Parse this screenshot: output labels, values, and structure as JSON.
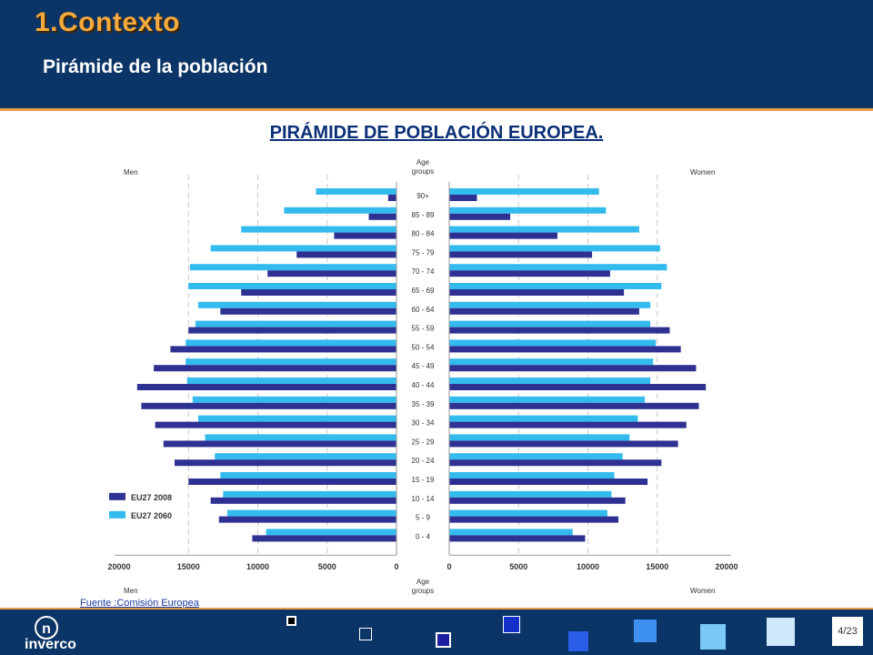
{
  "header": {
    "title": "1.Contexto",
    "subtitle": "Pirámide de la población"
  },
  "chart_data": {
    "type": "bar",
    "title": "PIRÁMIDE DE POBLACIÓN EUROPEA.",
    "center_label": "Age groups",
    "left_label": "Men",
    "right_label": "Women",
    "categories": [
      "90+",
      "85 - 89",
      "80 - 84",
      "75 - 79",
      "70 - 74",
      "65 - 69",
      "60 - 64",
      "55 - 59",
      "50 - 54",
      "45 - 49",
      "40 - 44",
      "35 - 39",
      "30 - 34",
      "25 - 29",
      "20 - 24",
      "15 - 19",
      "10 - 14",
      "5 - 9",
      "0 - 4"
    ],
    "series": [
      {
        "name": "EU27 2008",
        "color": "#2e3192",
        "men": [
          600,
          2000,
          4500,
          7200,
          9300,
          11200,
          12700,
          15000,
          16300,
          17500,
          18700,
          18400,
          17400,
          16800,
          16000,
          15000,
          13400,
          12800,
          10400
        ],
        "women": [
          2000,
          4400,
          7800,
          10300,
          11600,
          12600,
          13700,
          15900,
          16700,
          17800,
          18500,
          18000,
          17100,
          16500,
          15300,
          14300,
          12700,
          12200,
          9800
        ]
      },
      {
        "name": "EU27 2060",
        "color": "#33bbee",
        "men": [
          5800,
          8100,
          11200,
          13400,
          14900,
          15000,
          14300,
          14500,
          15200,
          15200,
          15100,
          14700,
          14300,
          13800,
          13100,
          12700,
          12500,
          12200,
          9400
        ]
      }
    ],
    "women_2060": [
      10800,
      11300,
      13700,
      15200,
      15700,
      15300,
      14500,
      14500,
      14900,
      14700,
      14500,
      14100,
      13600,
      13000,
      12500,
      11900,
      11700,
      11400,
      8900
    ],
    "x_ticks_left": [
      "20000",
      "15000",
      "10000",
      "5000",
      "0"
    ],
    "x_ticks_right": [
      "0",
      "5000",
      "10000",
      "15000",
      "20000"
    ],
    "xlim": [
      0,
      20000
    ],
    "grid": true,
    "legend": "bottom-left"
  },
  "source": "Fuente :Comisión Europea",
  "footer": {
    "logo_glyph": "n",
    "logo_text": "inverco",
    "page": "4/23"
  }
}
